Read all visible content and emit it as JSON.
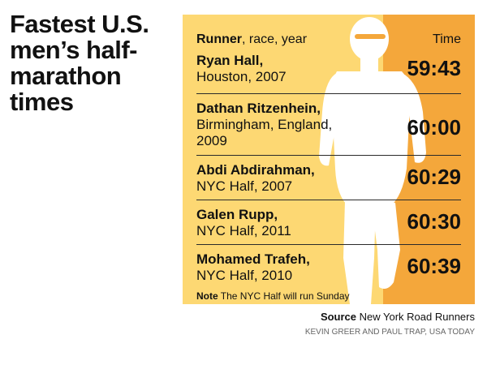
{
  "title": "Fastest U.S. men’s half-marathon times",
  "header": {
    "runner_bold": "Runner",
    "runner_rest": ", race, year",
    "time_label": "Time"
  },
  "rows": [
    {
      "name": "Ryan Hall,",
      "detail_1": "Houston, 2007",
      "detail_2": "",
      "time": "59:43"
    },
    {
      "name": "Dathan Ritzenhein,",
      "detail_1": "Birmingham, England,",
      "detail_2": "2009",
      "time": "60:00"
    },
    {
      "name": "Abdi Abdirahman,",
      "detail_1": "NYC Half, 2007",
      "detail_2": "",
      "time": "60:29"
    },
    {
      "name": "Galen Rupp,",
      "detail_1": "NYC Half, 2011",
      "detail_2": "",
      "time": "60:30"
    },
    {
      "name": "Mohamed Trafeh,",
      "detail_1": "NYC Half, 2010",
      "detail_2": "",
      "time": "60:39"
    }
  ],
  "note": {
    "label": "Note",
    "text": " The NYC Half will run Sunday"
  },
  "source": {
    "label": "Source",
    "text": " New York Road Runners"
  },
  "credit": "Kevin Greer and Paul Trap, USA TODAY",
  "colors": {
    "panel": "#fdd873",
    "time_column": "#f4a73b",
    "silhouette": "#ffffff"
  },
  "icons": {
    "background_figure": "runner-silhouette-icon"
  }
}
